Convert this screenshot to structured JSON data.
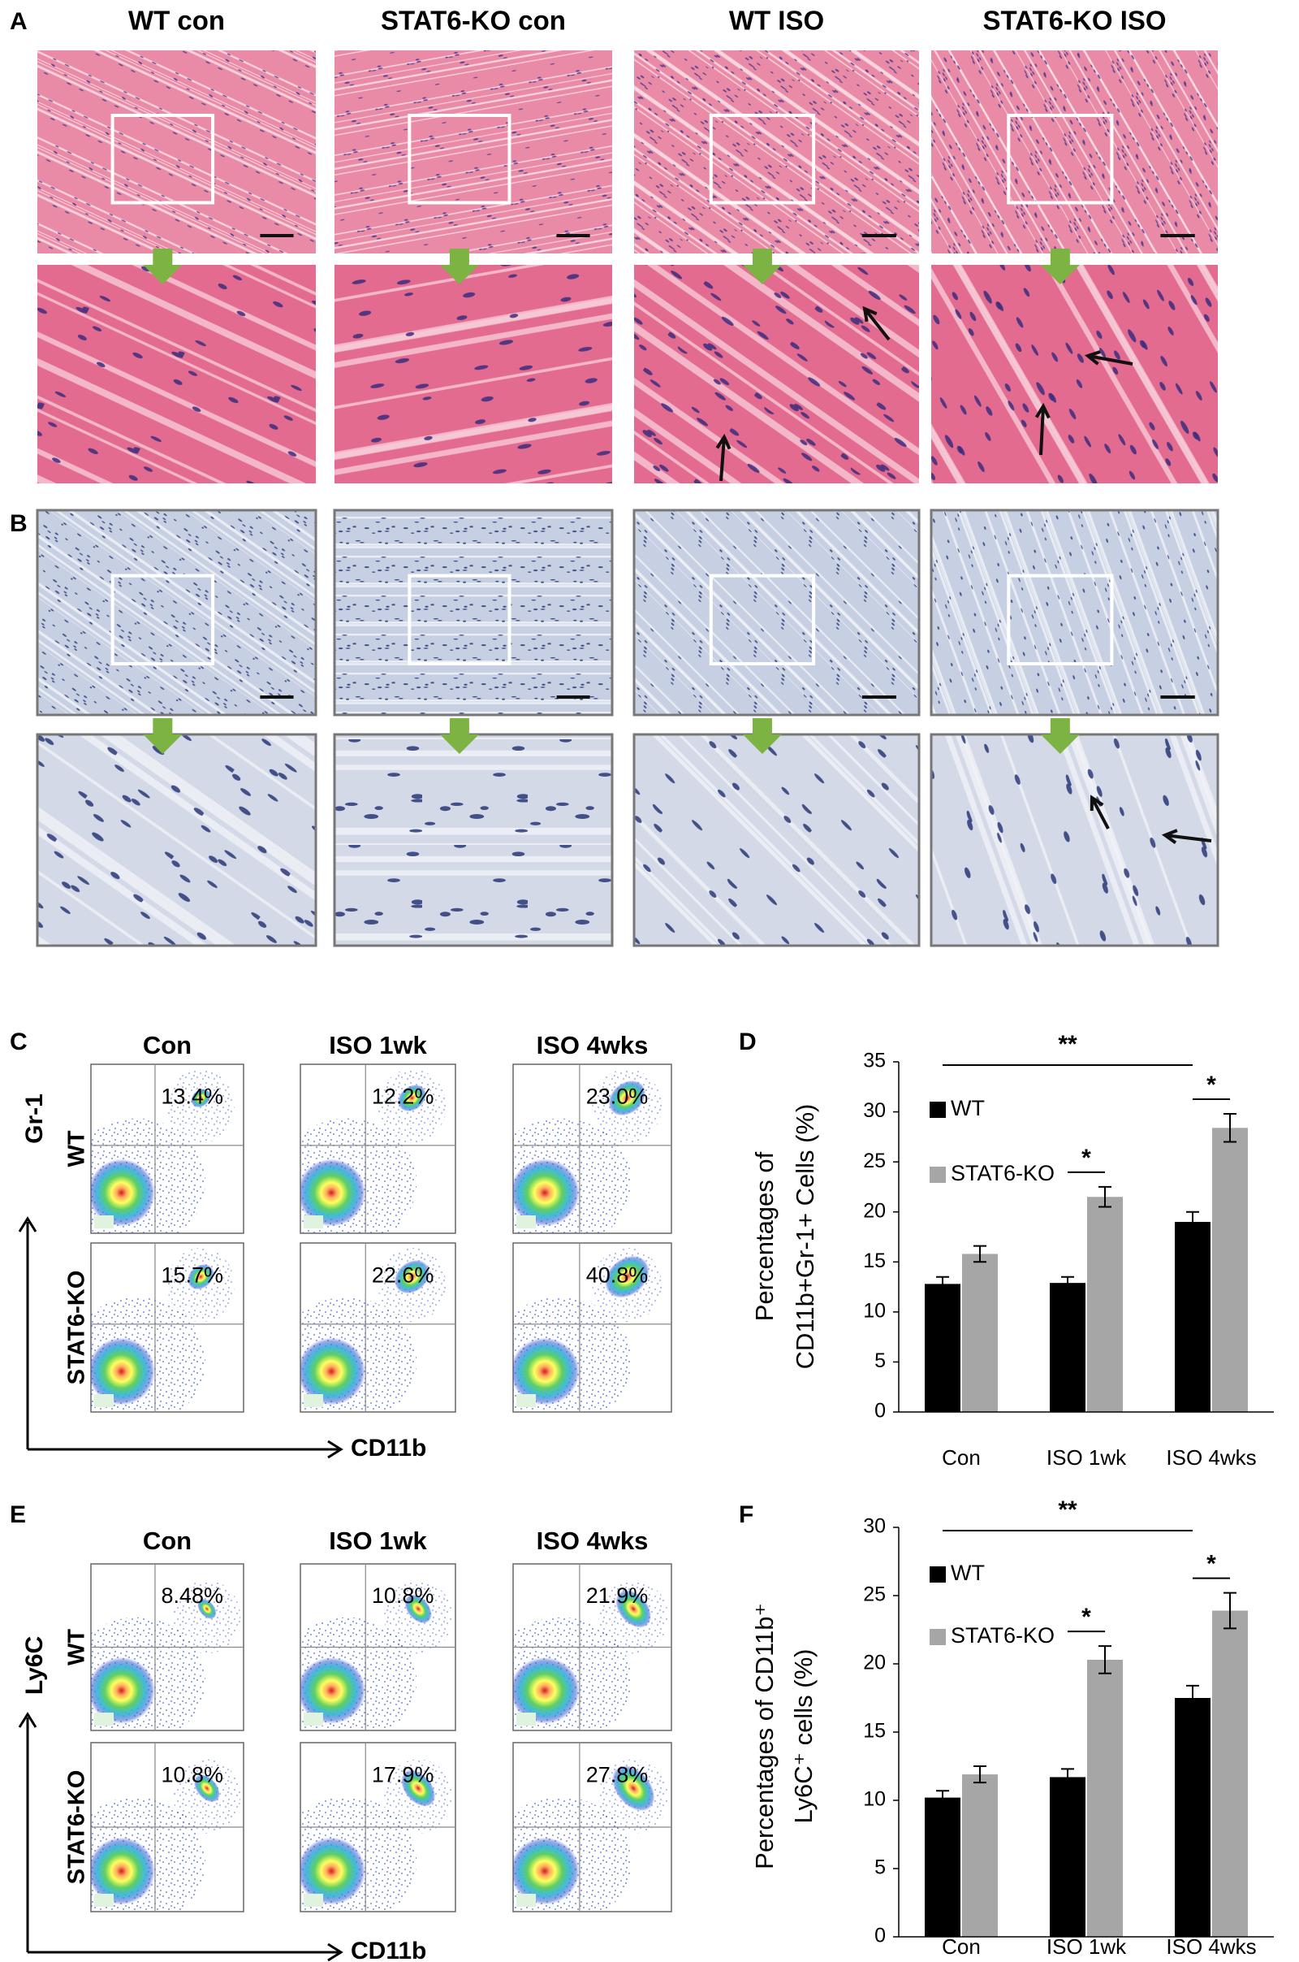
{
  "panel_labels": [
    "A",
    "B",
    "C",
    "D",
    "E",
    "F"
  ],
  "histology": {
    "columns": [
      "WT con",
      "STAT6-KO con",
      "WT ISO",
      "STAT6-KO ISO"
    ]
  },
  "flow_cytometry": [
    {
      "columns": [
        "Con",
        "ISO 1wk",
        "ISO 4wks"
      ],
      "rows": [
        "WT",
        "STAT6-KO"
      ],
      "y_marker": "Gr-1",
      "x_marker": "CD11b",
      "percentages": [
        [
          "13.4%",
          "12.2%",
          "23.0%"
        ],
        [
          "15.7%",
          "22.6%",
          "40.8%"
        ]
      ]
    },
    {
      "columns": [
        "Con",
        "ISO 1wk",
        "ISO 4wks"
      ],
      "rows": [
        "WT",
        "STAT6-KO"
      ],
      "y_marker": "Ly6C",
      "x_marker": "CD11b",
      "percentages": [
        [
          "8.48%",
          "10.8%",
          "21.9%"
        ],
        [
          "10.8%",
          "17.9%",
          "27.8%"
        ]
      ]
    }
  ],
  "chart_data": [
    {
      "type": "bar",
      "ylabel": [
        "Percentages of",
        "CD11b+Gr-1+ Cells (%)"
      ],
      "categories": [
        "Con",
        "ISO 1wk",
        "ISO 4wks"
      ],
      "series": [
        {
          "name": "WT",
          "color": "#000000",
          "values": [
            12.8,
            12.9,
            19.0
          ],
          "errors": [
            0.7,
            0.6,
            1.0
          ]
        },
        {
          "name": "STAT6-KO",
          "color": "#a6a6a6",
          "values": [
            15.8,
            21.5,
            28.4
          ],
          "errors": [
            0.8,
            1.0,
            1.4
          ]
        }
      ],
      "ylim": [
        0,
        35
      ],
      "yticks": [
        0,
        5,
        10,
        15,
        20,
        25,
        30,
        35
      ],
      "annotations": [
        "**",
        "*",
        "*"
      ],
      "legend": "upper left"
    },
    {
      "type": "bar",
      "ylabel": [
        "Percentages of CD11b⁺",
        "Ly6C⁺ cells (%)"
      ],
      "categories": [
        "Con",
        "ISO 1wk",
        "ISO 4wks"
      ],
      "series": [
        {
          "name": "WT",
          "color": "#000000",
          "values": [
            10.2,
            11.7,
            17.5
          ],
          "errors": [
            0.5,
            0.6,
            0.9
          ]
        },
        {
          "name": "STAT6-KO",
          "color": "#a6a6a6",
          "values": [
            11.9,
            20.3,
            23.9
          ],
          "errors": [
            0.6,
            1.0,
            1.3
          ]
        }
      ],
      "ylim": [
        0,
        30
      ],
      "yticks": [
        0,
        5,
        10,
        15,
        20,
        25,
        30
      ],
      "annotations": [
        "**",
        "*",
        "*"
      ],
      "legend": "upper left"
    }
  ]
}
